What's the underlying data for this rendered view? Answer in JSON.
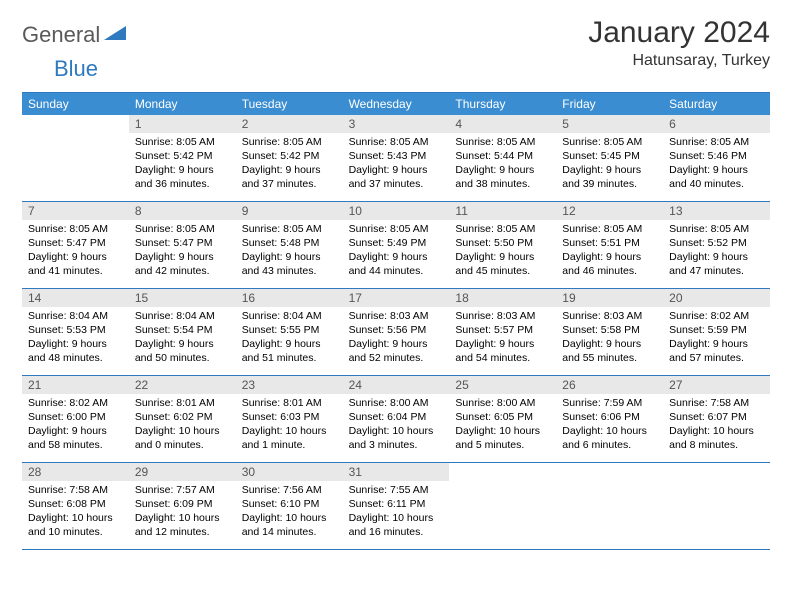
{
  "logo": {
    "word1": "General",
    "word2": "Blue"
  },
  "title": "January 2024",
  "subtitle": "Hatunsaray, Turkey",
  "colors": {
    "header_bg": "#3a8dd0",
    "border": "#2f7abf",
    "daynum_bg": "#e8e8e8",
    "logo_gray": "#5a5a5a",
    "logo_blue": "#2f7abf"
  },
  "day_names": [
    "Sunday",
    "Monday",
    "Tuesday",
    "Wednesday",
    "Thursday",
    "Friday",
    "Saturday"
  ],
  "weeks": [
    [
      {
        "n": "",
        "l1": "",
        "l2": "",
        "l3": "",
        "l4": ""
      },
      {
        "n": "1",
        "l1": "Sunrise: 8:05 AM",
        "l2": "Sunset: 5:42 PM",
        "l3": "Daylight: 9 hours",
        "l4": "and 36 minutes."
      },
      {
        "n": "2",
        "l1": "Sunrise: 8:05 AM",
        "l2": "Sunset: 5:42 PM",
        "l3": "Daylight: 9 hours",
        "l4": "and 37 minutes."
      },
      {
        "n": "3",
        "l1": "Sunrise: 8:05 AM",
        "l2": "Sunset: 5:43 PM",
        "l3": "Daylight: 9 hours",
        "l4": "and 37 minutes."
      },
      {
        "n": "4",
        "l1": "Sunrise: 8:05 AM",
        "l2": "Sunset: 5:44 PM",
        "l3": "Daylight: 9 hours",
        "l4": "and 38 minutes."
      },
      {
        "n": "5",
        "l1": "Sunrise: 8:05 AM",
        "l2": "Sunset: 5:45 PM",
        "l3": "Daylight: 9 hours",
        "l4": "and 39 minutes."
      },
      {
        "n": "6",
        "l1": "Sunrise: 8:05 AM",
        "l2": "Sunset: 5:46 PM",
        "l3": "Daylight: 9 hours",
        "l4": "and 40 minutes."
      }
    ],
    [
      {
        "n": "7",
        "l1": "Sunrise: 8:05 AM",
        "l2": "Sunset: 5:47 PM",
        "l3": "Daylight: 9 hours",
        "l4": "and 41 minutes."
      },
      {
        "n": "8",
        "l1": "Sunrise: 8:05 AM",
        "l2": "Sunset: 5:47 PM",
        "l3": "Daylight: 9 hours",
        "l4": "and 42 minutes."
      },
      {
        "n": "9",
        "l1": "Sunrise: 8:05 AM",
        "l2": "Sunset: 5:48 PM",
        "l3": "Daylight: 9 hours",
        "l4": "and 43 minutes."
      },
      {
        "n": "10",
        "l1": "Sunrise: 8:05 AM",
        "l2": "Sunset: 5:49 PM",
        "l3": "Daylight: 9 hours",
        "l4": "and 44 minutes."
      },
      {
        "n": "11",
        "l1": "Sunrise: 8:05 AM",
        "l2": "Sunset: 5:50 PM",
        "l3": "Daylight: 9 hours",
        "l4": "and 45 minutes."
      },
      {
        "n": "12",
        "l1": "Sunrise: 8:05 AM",
        "l2": "Sunset: 5:51 PM",
        "l3": "Daylight: 9 hours",
        "l4": "and 46 minutes."
      },
      {
        "n": "13",
        "l1": "Sunrise: 8:05 AM",
        "l2": "Sunset: 5:52 PM",
        "l3": "Daylight: 9 hours",
        "l4": "and 47 minutes."
      }
    ],
    [
      {
        "n": "14",
        "l1": "Sunrise: 8:04 AM",
        "l2": "Sunset: 5:53 PM",
        "l3": "Daylight: 9 hours",
        "l4": "and 48 minutes."
      },
      {
        "n": "15",
        "l1": "Sunrise: 8:04 AM",
        "l2": "Sunset: 5:54 PM",
        "l3": "Daylight: 9 hours",
        "l4": "and 50 minutes."
      },
      {
        "n": "16",
        "l1": "Sunrise: 8:04 AM",
        "l2": "Sunset: 5:55 PM",
        "l3": "Daylight: 9 hours",
        "l4": "and 51 minutes."
      },
      {
        "n": "17",
        "l1": "Sunrise: 8:03 AM",
        "l2": "Sunset: 5:56 PM",
        "l3": "Daylight: 9 hours",
        "l4": "and 52 minutes."
      },
      {
        "n": "18",
        "l1": "Sunrise: 8:03 AM",
        "l2": "Sunset: 5:57 PM",
        "l3": "Daylight: 9 hours",
        "l4": "and 54 minutes."
      },
      {
        "n": "19",
        "l1": "Sunrise: 8:03 AM",
        "l2": "Sunset: 5:58 PM",
        "l3": "Daylight: 9 hours",
        "l4": "and 55 minutes."
      },
      {
        "n": "20",
        "l1": "Sunrise: 8:02 AM",
        "l2": "Sunset: 5:59 PM",
        "l3": "Daylight: 9 hours",
        "l4": "and 57 minutes."
      }
    ],
    [
      {
        "n": "21",
        "l1": "Sunrise: 8:02 AM",
        "l2": "Sunset: 6:00 PM",
        "l3": "Daylight: 9 hours",
        "l4": "and 58 minutes."
      },
      {
        "n": "22",
        "l1": "Sunrise: 8:01 AM",
        "l2": "Sunset: 6:02 PM",
        "l3": "Daylight: 10 hours",
        "l4": "and 0 minutes."
      },
      {
        "n": "23",
        "l1": "Sunrise: 8:01 AM",
        "l2": "Sunset: 6:03 PM",
        "l3": "Daylight: 10 hours",
        "l4": "and 1 minute."
      },
      {
        "n": "24",
        "l1": "Sunrise: 8:00 AM",
        "l2": "Sunset: 6:04 PM",
        "l3": "Daylight: 10 hours",
        "l4": "and 3 minutes."
      },
      {
        "n": "25",
        "l1": "Sunrise: 8:00 AM",
        "l2": "Sunset: 6:05 PM",
        "l3": "Daylight: 10 hours",
        "l4": "and 5 minutes."
      },
      {
        "n": "26",
        "l1": "Sunrise: 7:59 AM",
        "l2": "Sunset: 6:06 PM",
        "l3": "Daylight: 10 hours",
        "l4": "and 6 minutes."
      },
      {
        "n": "27",
        "l1": "Sunrise: 7:58 AM",
        "l2": "Sunset: 6:07 PM",
        "l3": "Daylight: 10 hours",
        "l4": "and 8 minutes."
      }
    ],
    [
      {
        "n": "28",
        "l1": "Sunrise: 7:58 AM",
        "l2": "Sunset: 6:08 PM",
        "l3": "Daylight: 10 hours",
        "l4": "and 10 minutes."
      },
      {
        "n": "29",
        "l1": "Sunrise: 7:57 AM",
        "l2": "Sunset: 6:09 PM",
        "l3": "Daylight: 10 hours",
        "l4": "and 12 minutes."
      },
      {
        "n": "30",
        "l1": "Sunrise: 7:56 AM",
        "l2": "Sunset: 6:10 PM",
        "l3": "Daylight: 10 hours",
        "l4": "and 14 minutes."
      },
      {
        "n": "31",
        "l1": "Sunrise: 7:55 AM",
        "l2": "Sunset: 6:11 PM",
        "l3": "Daylight: 10 hours",
        "l4": "and 16 minutes."
      },
      {
        "n": "",
        "l1": "",
        "l2": "",
        "l3": "",
        "l4": ""
      },
      {
        "n": "",
        "l1": "",
        "l2": "",
        "l3": "",
        "l4": ""
      },
      {
        "n": "",
        "l1": "",
        "l2": "",
        "l3": "",
        "l4": ""
      }
    ]
  ]
}
